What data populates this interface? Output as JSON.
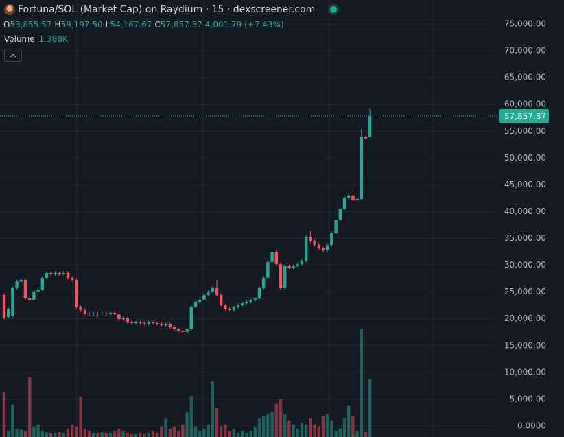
{
  "chart_data": {
    "type": "candlestick",
    "title": "Fortuna/SOL (Market Cap) on Raydium · 15 · dexscreener.com",
    "legend": {
      "items": [
        {
          "key": "O",
          "value": "53,855.57"
        },
        {
          "key": "H",
          "value": "59,197.50"
        },
        {
          "key": "L",
          "value": "54,167.67"
        },
        {
          "key": "C",
          "value": "57,857.37"
        }
      ],
      "change": "4,001.79 (+7.43%)",
      "volume_name": "Volume",
      "volume_value": "1.388K"
    },
    "up_color": "#22ab94",
    "down_color": "#f7525f",
    "open": [
      24448,
      20352,
      20608,
      25728,
      27008,
      27264,
      23808,
      23552,
      25088,
      25472,
      27648,
      28544,
      28288,
      28544,
      28288,
      28544,
      27648,
      27264,
      22144,
      21632,
      20992,
      20864,
      20992,
      20864,
      20992,
      20864,
      21120,
      20864,
      19968,
      20096,
      19328,
      19200,
      19328,
      19200,
      19072,
      19328,
      19200,
      19072,
      18816,
      18944,
      18432,
      18048,
      17792,
      17536,
      18048,
      22272,
      23168,
      23552,
      24448,
      25088,
      25728,
      24448,
      22528,
      21888,
      21632,
      22144,
      22528,
      22912,
      23168,
      23424,
      23808,
      25728,
      27648,
      30592,
      32384,
      30208,
      25728,
      29824,
      29568,
      29824,
      30208,
      30848,
      35328,
      34432,
      33792,
      33152,
      32768,
      33792,
      35968,
      38528,
      40448,
      42624,
      43008,
      42112,
      42368,
      53888,
      53855.57
    ],
    "high": [
      24748,
      22188,
      26028,
      27308,
      27564,
      27564,
      24108,
      25388,
      25772,
      27948,
      28844,
      28844,
      28844,
      28844,
      28844,
      28844,
      27948,
      27564,
      22444,
      21932,
      21292,
      21292,
      21292,
      21292,
      21292,
      21420,
      21420,
      21164,
      20396,
      20396,
      19628,
      19628,
      19628,
      19500,
      19628,
      19628,
      19500,
      19372,
      19244,
      19244,
      18732,
      18348,
      18092,
      18348,
      22572,
      23468,
      23852,
      24748,
      25388,
      26028,
      27264,
      24748,
      22828,
      22188,
      22444,
      22828,
      23212,
      23468,
      23724,
      24108,
      26028,
      27948,
      30892,
      32684,
      32800,
      30508,
      30124,
      30124,
      30124,
      30508,
      31148,
      35628,
      36500,
      34732,
      34092,
      33452,
      34092,
      36268,
      38828,
      40748,
      42924,
      43308,
      44700,
      42668,
      55400,
      54144,
      59197.5
    ],
    "low": [
      19924,
      20052,
      20308,
      25428,
      26708,
      23508,
      23252,
      23252,
      24788,
      25172,
      27348,
      27988,
      27988,
      27988,
      27988,
      27348,
      26964,
      21844,
      21332,
      20692,
      20564,
      20564,
      20564,
      20564,
      20564,
      20564,
      20564,
      19668,
      19668,
      19028,
      18900,
      18900,
      18900,
      18772,
      18772,
      18900,
      18772,
      18516,
      18516,
      18132,
      17748,
      17492,
      17236,
      17236,
      17748,
      21972,
      22868,
      23252,
      24148,
      24788,
      24148,
      22228,
      21588,
      21332,
      21332,
      21844,
      22228,
      22612,
      22868,
      23124,
      23508,
      25428,
      27348,
      30292,
      29908,
      25428,
      25428,
      29268,
      29268,
      29524,
      29908,
      30548,
      34132,
      33492,
      32852,
      32468,
      32468,
      33492,
      35668,
      38228,
      40148,
      42324,
      41812,
      41812,
      42068,
      53400,
      54167.67
    ],
    "close": [
      20224,
      21888,
      25728,
      27008,
      27264,
      23808,
      23552,
      25088,
      25472,
      27648,
      28544,
      28288,
      28544,
      28288,
      28544,
      27648,
      27264,
      22144,
      21632,
      20992,
      20864,
      20992,
      20864,
      20992,
      20864,
      21120,
      20864,
      19968,
      20096,
      19328,
      19200,
      19328,
      19200,
      19072,
      19328,
      19200,
      19072,
      18816,
      18944,
      18432,
      18048,
      17792,
      17536,
      18048,
      22272,
      23168,
      23552,
      24448,
      25088,
      25728,
      24448,
      22528,
      21888,
      21632,
      22144,
      22528,
      22912,
      23168,
      23424,
      23808,
      25728,
      27648,
      30592,
      32384,
      30208,
      25728,
      29824,
      29568,
      29824,
      30208,
      30848,
      35328,
      34432,
      33792,
      33152,
      32768,
      33792,
      35968,
      38528,
      40448,
      42624,
      43008,
      42112,
      42368,
      53888,
      53632,
      57857.37
    ],
    "volume": [
      1070,
      150,
      780,
      200,
      180,
      150,
      1440,
      250,
      300,
      150,
      120,
      100,
      100,
      120,
      100,
      200,
      300,
      250,
      980,
      200,
      150,
      100,
      100,
      120,
      100,
      100,
      150,
      200,
      150,
      100,
      80,
      80,
      100,
      80,
      100,
      150,
      100,
      250,
      450,
      200,
      250,
      150,
      300,
      600,
      990,
      250,
      150,
      200,
      300,
      1340,
      700,
      250,
      300,
      150,
      200,
      100,
      150,
      100,
      150,
      250,
      450,
      500,
      550,
      600,
      800,
      910,
      550,
      400,
      300,
      200,
      350,
      300,
      450,
      300,
      250,
      500,
      550,
      400,
      150,
      200,
      450,
      750,
      500,
      150,
      2590,
      120,
      1388
    ],
    "ylim": [
      -2050,
      79480
    ],
    "yticks": [
      {
        "value": 0,
        "label": "0.0000"
      },
      {
        "value": 5000,
        "label": "5,000.00"
      },
      {
        "value": 10000,
        "label": "10,000.00"
      },
      {
        "value": 15000,
        "label": "15,000.00"
      },
      {
        "value": 20000,
        "label": "20,000.00"
      },
      {
        "value": 25000,
        "label": "25,000.00"
      },
      {
        "value": 30000,
        "label": "30,000.00"
      },
      {
        "value": 35000,
        "label": "35,000.00"
      },
      {
        "value": 40000,
        "label": "40,000.00"
      },
      {
        "value": 45000,
        "label": "45,000.00"
      },
      {
        "value": 50000,
        "label": "50,000.00"
      },
      {
        "value": 55000,
        "label": "55,000.00"
      },
      {
        "value": 60000,
        "label": "60,000.00"
      },
      {
        "value": 65000,
        "label": "65,000.00"
      },
      {
        "value": 70000,
        "label": "70,000.00"
      },
      {
        "value": 75000,
        "label": "75,000.00"
      }
    ],
    "last_price": {
      "value": 57857.37,
      "label": "57,857.37"
    },
    "grid": true
  }
}
